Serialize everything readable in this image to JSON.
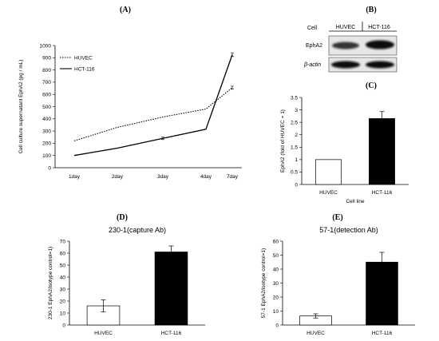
{
  "panels": {
    "A": "(A)",
    "B": "(B)",
    "C": "(C)",
    "D": "(D)",
    "E": "(E)"
  },
  "blot": {
    "cell_label": "Cell",
    "cell_lines": [
      "HUVEC",
      "HCT-116"
    ],
    "rows": [
      {
        "label": "EphA2",
        "bands": [
          0.85,
          0.95
        ]
      },
      {
        "label": "β-actin",
        "bands": [
          0.95,
          0.95
        ]
      }
    ]
  },
  "chart_data": [
    {
      "id": "A",
      "type": "line",
      "title": "",
      "categories": [
        "1day",
        "2day",
        "3day",
        "4day",
        "7day"
      ],
      "ylabel": "Cell culture supernatant EphA2 (pg / mL)",
      "xlabel": "",
      "ylim": [
        0,
        1000
      ],
      "yticks": [
        0,
        100,
        200,
        300,
        400,
        500,
        600,
        700,
        800,
        900,
        1000
      ],
      "grid": false,
      "legend_position": "top-left",
      "series": [
        {
          "name": "HUVEC",
          "style": "dotted",
          "values": [
            220,
            330,
            415,
            480,
            655
          ],
          "errors": [
            0,
            0,
            0,
            0,
            12
          ]
        },
        {
          "name": "HCT-116",
          "style": "solid",
          "values": [
            100,
            160,
            240,
            315,
            925
          ],
          "errors": [
            0,
            0,
            10,
            0,
            15
          ]
        }
      ]
    },
    {
      "id": "C",
      "type": "bar",
      "title": "",
      "categories": [
        "HUVEC",
        "HCT-116"
      ],
      "values": [
        1.0,
        2.65
      ],
      "errors": [
        0,
        0.28
      ],
      "colors": [
        "#ffffff",
        "#000000"
      ],
      "ylabel": "EphA2 (fold of HUVEC = 1)",
      "xlabel": "Cell line",
      "ylim": [
        0,
        3.5
      ],
      "yticks": [
        0,
        0.5,
        1,
        1.5,
        2,
        2.5,
        3,
        3.5
      ],
      "grid": false
    },
    {
      "id": "D",
      "type": "bar",
      "title": "230-1(capture Ab)",
      "categories": [
        "HUVEC",
        "HCT-116"
      ],
      "values": [
        16,
        61
      ],
      "errors": [
        5,
        5
      ],
      "colors": [
        "#ffffff",
        "#000000"
      ],
      "ylabel": "230-1 EphA2/isotype control=1)",
      "xlabel": "",
      "ylim": [
        0,
        70
      ],
      "yticks": [
        0,
        10,
        20,
        30,
        40,
        50,
        60,
        70
      ],
      "grid": false
    },
    {
      "id": "E",
      "type": "bar",
      "title": "57-1(detection Ab)",
      "categories": [
        "HUVEC",
        "HCT-116"
      ],
      "values": [
        6.5,
        45
      ],
      "errors": [
        1.5,
        7
      ],
      "colors": [
        "#ffffff",
        "#000000"
      ],
      "ylabel": "57-1 EphA2/isotype control=1)",
      "xlabel": "",
      "ylim": [
        0,
        60
      ],
      "yticks": [
        0,
        10,
        20,
        30,
        40,
        50,
        60
      ],
      "grid": false
    }
  ]
}
